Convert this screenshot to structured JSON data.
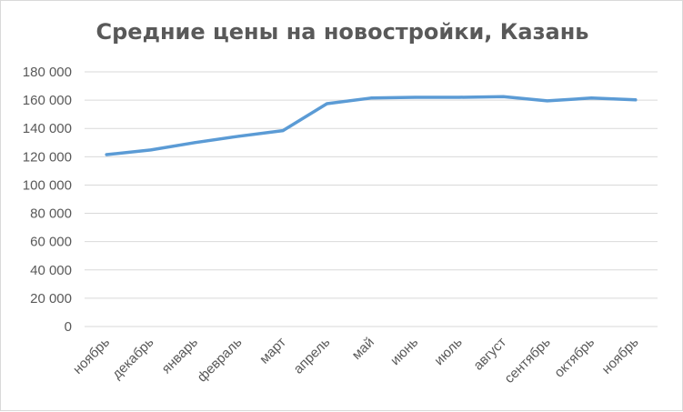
{
  "chart_data": {
    "type": "line",
    "title": "Средние цены на новостройки, Казань",
    "xlabel": "",
    "ylabel": "",
    "categories": [
      "ноябрь",
      "декабрь",
      "январь",
      "февраль",
      "март",
      "апрель",
      "май",
      "июнь",
      "июль",
      "август",
      "сентябрь",
      "октябрь",
      "ноябрь"
    ],
    "series": [
      {
        "values": [
          121500,
          124800,
          130000,
          134500,
          138500,
          157500,
          161500,
          162000,
          162000,
          162500,
          159500,
          161500,
          160200
        ],
        "color": "#5b9bd5"
      }
    ],
    "ylim": [
      0,
      180000
    ],
    "yticks": [
      0,
      20000,
      40000,
      60000,
      80000,
      100000,
      120000,
      140000,
      160000,
      180000
    ],
    "ytick_labels": [
      "0",
      "20 000",
      "40 000",
      "60 000",
      "80 000",
      "100 000",
      "120 000",
      "140 000",
      "160 000",
      "180 000"
    ],
    "grid": true,
    "legend": "none",
    "colors": {
      "line": "#5b9bd5",
      "grid": "#d9d9d9",
      "text": "#595959"
    }
  }
}
